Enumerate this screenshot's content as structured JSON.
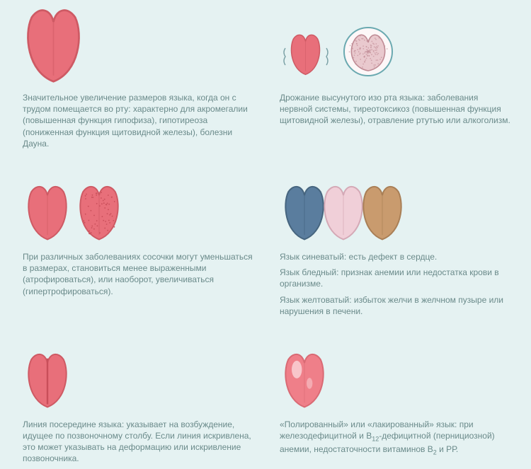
{
  "background": "#e5f2f2",
  "text_color": "#6a8a8a",
  "fontsize": 12,
  "cells": [
    {
      "id": "enlarged",
      "illus": {
        "type": "tongue",
        "fill": "#e86f7a",
        "stroke": "#ce5a64",
        "scale": 1.35,
        "extras": []
      },
      "paragraphs": [
        "Значительное увеличение размеров языка, когда он с трудом помещается во рту: характерно для акромегалии (повышенная функция гипофиза), гипотиреоза (пониженная функция щитовидной железы), болезни Дауна."
      ]
    },
    {
      "id": "trembling",
      "illus": {
        "type": "tongue_with_thyroid",
        "fill": "#e86f7a",
        "stroke": "#ce5a64",
        "thyroid_fill": "#e9c9ce",
        "thyroid_stroke": "#bf8a94",
        "circle_stroke": "#6aa9b0"
      },
      "paragraphs": [
        "Дрожание высунутого изо рта языка: заболевания нервной системы, тиреотоксикоз (повышенная функция щитовидной железы), отравление ртутью или алкоголизм."
      ]
    },
    {
      "id": "papillae",
      "illus": {
        "type": "two_tongues",
        "left": {
          "fill": "#e86f7a",
          "stroke": "#ce5a64"
        },
        "right": {
          "fill": "#e86f7a",
          "stroke": "#ce5a64",
          "dots": true,
          "dot_color": "#c94f5a"
        }
      },
      "paragraphs": [
        "При различных заболеваниях сосочки могут уменьшаться в размерах, становиться менее выраженными (атрофироваться), или наоборот, увеличиваться (гипертрофироваться)."
      ]
    },
    {
      "id": "colors",
      "illus": {
        "type": "three_tongues",
        "colors": [
          {
            "fill": "#5a7d9e",
            "stroke": "#46657f"
          },
          {
            "fill": "#f0cfd8",
            "stroke": "#d4a9b6"
          },
          {
            "fill": "#c99b6e",
            "stroke": "#a97f56"
          }
        ]
      },
      "paragraphs": [
        "Язык синеватый: есть дефект в сердце.",
        "Язык бледный: признак анемии или недостатка крови в организме.",
        "Язык желтоватый: избыток желчи в желчном пузыре или нарушения в печени."
      ]
    },
    {
      "id": "midline",
      "illus": {
        "type": "tongue_midline",
        "fill": "#e86f7a",
        "stroke": "#ce5a64",
        "groove": "#c94f5a"
      },
      "paragraphs": [
        "Линия посередине языка: указывает на возбуждение, идущее по позвоночному столбу. Если линия искривлена, это может указывать на деформацию или искривление позвоночника."
      ]
    },
    {
      "id": "polished",
      "illus": {
        "type": "tongue_shiny",
        "fill": "#ef7f89",
        "stroke": "#d96a74",
        "highlight": "#ffffff"
      },
      "paragraphs": [
        "«Полированный» или «лакированный» язык: при железодефицитной и В<sub>12</sub>-дефицитной (пернициозной) анемии, недостаточности витаминов В<sub>2</sub> и РР."
      ]
    }
  ]
}
